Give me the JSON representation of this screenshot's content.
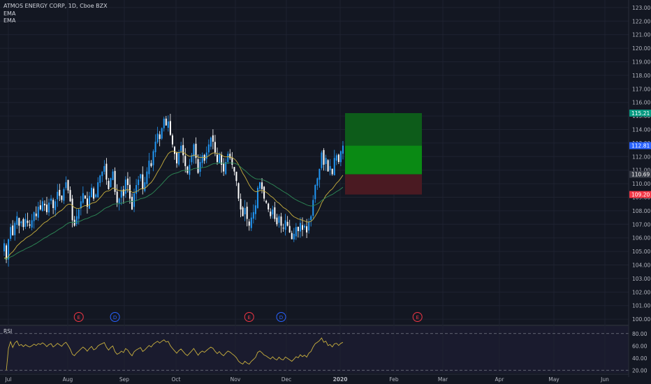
{
  "header": {
    "symbol_line": "ATMOS ENERGY CORP, 1D, Cboe BZX",
    "indicators": [
      "EMA",
      "EMA"
    ]
  },
  "rsi": {
    "label": "RSI",
    "ticks": [
      "80.00",
      "60.00",
      "40.00",
      "20.00"
    ],
    "tick_values": [
      80,
      60,
      40,
      20
    ],
    "range": [
      18,
      90
    ],
    "bands": [
      80,
      20
    ]
  },
  "chart_data": {
    "type": "candlestick",
    "title": "ATMOS ENERGY CORP, 1D, Cboe BZX",
    "x_ticks": [
      "Jul",
      "Aug",
      "Sep",
      "Oct",
      "Nov",
      "Dec",
      "2020",
      "Feb",
      "Mar",
      "Apr",
      "May",
      "Jun"
    ],
    "y_ticks": [
      "123.00",
      "122.00",
      "121.00",
      "120.00",
      "119.00",
      "118.00",
      "117.00",
      "116.00",
      "115.00",
      "114.00",
      "113.00",
      "112.00",
      "111.00",
      "110.00",
      "109.00",
      "108.00",
      "107.00",
      "106.00",
      "105.00",
      "104.00",
      "103.00",
      "102.00",
      "101.00",
      "100.00"
    ],
    "ylim": [
      99.8,
      123.2
    ],
    "price_labels": [
      {
        "text": "115.21",
        "value": 115.21,
        "color": "#089981"
      },
      {
        "text": "112.81",
        "value": 112.81,
        "color": "#2962ff"
      },
      {
        "text": "110.69",
        "value": 110.69,
        "color": "#363a45"
      },
      {
        "text": "109.20",
        "value": 109.2,
        "color": "#f23645"
      }
    ],
    "position_box": {
      "entry": 110.69,
      "target": 115.21,
      "stop": 109.2,
      "from_index": 156,
      "to_index": 180
    },
    "markers": [
      {
        "text": "E",
        "index": 35,
        "color": "#f23645"
      },
      {
        "text": "D",
        "index": 52,
        "color": "#2962ff"
      },
      {
        "text": "E",
        "index": 115,
        "color": "#f23645"
      },
      {
        "text": "D",
        "index": 130,
        "color": "#2962ff"
      },
      {
        "text": "E",
        "index": 194,
        "color": "#f23645"
      }
    ],
    "ema_colors": [
      "#c9b03e",
      "#2e8b57"
    ],
    "closes": [
      105.6,
      104.4,
      105.9,
      106.8,
      106.2,
      107.1,
      107.6,
      106.9,
      107.2,
      106.8,
      107.4,
      107.1,
      106.9,
      107.3,
      107.9,
      107.6,
      108.3,
      108.1,
      108.7,
      108.4,
      107.9,
      108.6,
      108.9,
      108.2,
      108.7,
      109.4,
      109.1,
      108.8,
      109.6,
      110.1,
      109.5,
      108.7,
      107.3,
      106.9,
      107.6,
      108.1,
      108.7,
      109.3,
      108.9,
      108.3,
      109.1,
      109.7,
      108.9,
      109.2,
      110.1,
      110.6,
      110.9,
      111.3,
      110.3,
      109.6,
      110.4,
      110.9,
      109.4,
      108.6,
      108.9,
      109.5,
      109.1,
      110.3,
      109.9,
      108.9,
      108.1,
      109.3,
      109.9,
      110.3,
      110.7,
      109.6,
      110.1,
      110.9,
      111.7,
      111.3,
      112.4,
      113.1,
      113.7,
      113.3,
      114.1,
      114.8,
      114.3,
      114.6,
      113.6,
      112.9,
      112.2,
      111.5,
      112.3,
      112.8,
      112.1,
      111.3,
      110.8,
      111.4,
      112.1,
      112.9,
      111.9,
      110.8,
      111.6,
      112.1,
      111.7,
      112.3,
      112.9,
      113.4,
      113.1,
      112.3,
      111.6,
      112.2,
      111.4,
      110.9,
      111.6,
      112.2,
      111.9,
      111.4,
      110.9,
      110.2,
      108.9,
      108.1,
      107.6,
      108.2,
      107.4,
      106.9,
      107.5,
      107.9,
      108.4,
      109.7,
      110.1,
      109.6,
      108.9,
      108.6,
      108.1,
      107.6,
      108.1,
      107.4,
      107.0,
      107.6,
      106.9,
      106.7,
      107.3,
      106.9,
      106.4,
      105.9,
      106.3,
      106.8,
      106.5,
      107.1,
      106.6,
      106.9,
      106.4,
      107.2,
      107.6,
      108.8,
      109.9,
      110.4,
      111.1,
      112.3,
      111.4,
      111.9,
      110.9,
      111.3,
      110.7,
      111.9,
      112.1,
      111.6,
      112.4,
      112.81
    ]
  }
}
